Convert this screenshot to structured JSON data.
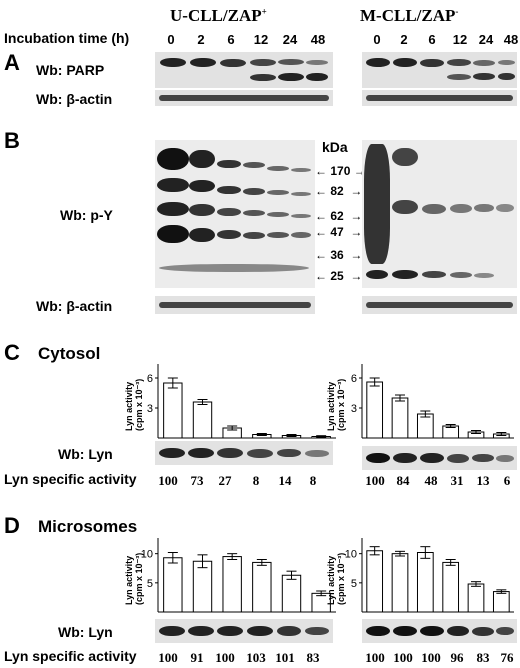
{
  "header": {
    "incubation_label": "Incubation time (h)",
    "group_left": "U-CLL/ZAP",
    "group_left_sup": "+",
    "group_right": "M-CLL/ZAP",
    "group_right_sup": "-",
    "times": [
      "0",
      "2",
      "6",
      "12",
      "24",
      "48"
    ]
  },
  "panel_a": {
    "letter": "A",
    "wb_parp": "Wb: PARP",
    "wb_actin": "Wb: β-actin"
  },
  "panel_b": {
    "letter": "B",
    "wb_py": "Wb: p-Y",
    "wb_actin": "Wb: β-actin",
    "kda_title": "kDa",
    "markers": [
      "170",
      "82",
      "62",
      "47",
      "36",
      "25"
    ]
  },
  "panel_c": {
    "letter": "C",
    "title": "Cytosol",
    "wb_lyn": "Wb: Lyn",
    "specific_label": "Lyn specific activity",
    "specific_left": [
      "100",
      "73",
      "27",
      "8",
      "14",
      "8"
    ],
    "specific_right": [
      "100",
      "84",
      "48",
      "31",
      "13",
      "6"
    ]
  },
  "panel_d": {
    "letter": "D",
    "title": "Microsomes",
    "wb_lyn": "Wb: Lyn",
    "specific_label": "Lyn specific activity",
    "specific_left": [
      "100",
      "91",
      "100",
      "103",
      "101",
      "83"
    ],
    "specific_right": [
      "100",
      "100",
      "100",
      "96",
      "83",
      "76"
    ]
  },
  "chart_data": [
    {
      "type": "bar",
      "panel": "C-left",
      "ylabel": "Lyn activity (cpm x 10⁻³)",
      "ytick_labels": [
        "3",
        "6"
      ],
      "ylim": [
        0,
        7
      ],
      "categories": [
        "0",
        "2",
        "6",
        "12",
        "24",
        "48"
      ],
      "values": [
        5.5,
        3.6,
        1.0,
        0.35,
        0.25,
        0.15
      ],
      "errors": [
        0.5,
        0.25,
        0.2,
        0.1,
        0.1,
        0.08
      ]
    },
    {
      "type": "bar",
      "panel": "C-right",
      "ylabel": "Lyn activity (cpm x 10⁻³)",
      "ytick_labels": [
        "3",
        "6"
      ],
      "ylim": [
        0,
        7
      ],
      "categories": [
        "0",
        "2",
        "6",
        "12",
        "24",
        "48"
      ],
      "values": [
        5.6,
        4.0,
        2.4,
        1.2,
        0.6,
        0.4
      ],
      "errors": [
        0.4,
        0.3,
        0.3,
        0.15,
        0.15,
        0.15
      ]
    },
    {
      "type": "bar",
      "panel": "D-left",
      "ylabel": "Lyn activity (cpm x 10⁻³)",
      "ytick_labels": [
        "5",
        "10"
      ],
      "ylim": [
        0,
        12
      ],
      "categories": [
        "0",
        "2",
        "6",
        "12",
        "24",
        "48"
      ],
      "values": [
        9.3,
        8.7,
        9.5,
        8.5,
        6.3,
        3.2
      ],
      "errors": [
        0.9,
        1.1,
        0.5,
        0.5,
        0.7,
        0.4
      ]
    },
    {
      "type": "bar",
      "panel": "D-right",
      "ylabel": "Lyn activity (cpm x 10⁻³)",
      "ytick_labels": [
        "5",
        "10"
      ],
      "ylim": [
        0,
        12
      ],
      "categories": [
        "0",
        "2",
        "6",
        "12",
        "24",
        "48"
      ],
      "values": [
        10.5,
        10.0,
        10.2,
        8.5,
        4.8,
        3.5
      ],
      "errors": [
        0.7,
        0.4,
        1.0,
        0.5,
        0.4,
        0.3
      ]
    }
  ]
}
